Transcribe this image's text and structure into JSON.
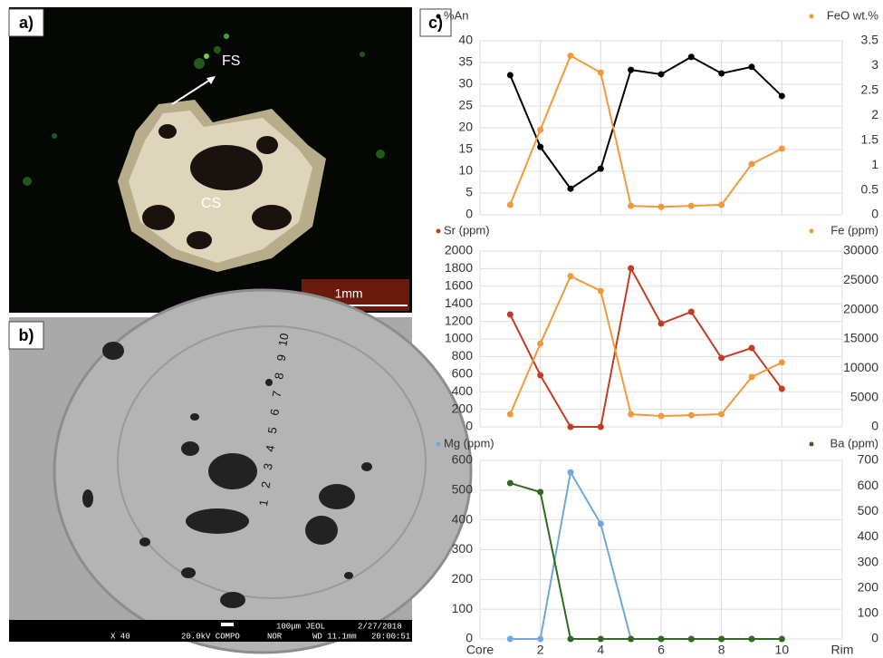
{
  "panels": {
    "a": {
      "label": "a)",
      "texts": [
        "FS",
        "CS"
      ],
      "scale": "1mm"
    },
    "b": {
      "label": "b)",
      "points": [
        "1",
        "2",
        "3",
        "4",
        "5",
        "6",
        "7",
        "8",
        "9",
        "10"
      ],
      "footer": [
        "X 40",
        "20.0kV COMPO",
        "NOR",
        "100µm JEOL",
        "WD 11.1mm",
        "2/27/2018",
        "20:00:51"
      ]
    },
    "c": {
      "label": "c)"
    }
  },
  "chart_data": [
    {
      "type": "line",
      "x": [
        1,
        2,
        3,
        4,
        5,
        6,
        7,
        8,
        9,
        10
      ],
      "xlim": [
        0,
        12
      ],
      "grid": true,
      "ylim": [
        0,
        40
      ],
      "yticks": [
        0,
        5,
        10,
        15,
        20,
        25,
        30,
        35,
        40
      ],
      "y2lim": [
        0,
        3.5
      ],
      "y2ticks": [
        0,
        0.5,
        1,
        1.5,
        2,
        2.5,
        3,
        3.5
      ],
      "series": [
        {
          "name": "%An",
          "color": "#000000",
          "values": [
            32.1,
            15.6,
            6.0,
            10.6,
            33.3,
            32.3,
            36.3,
            32.5,
            34.0,
            27.3
          ]
        },
        {
          "name": "FeO wt.%",
          "color": "#f0993a",
          "axis": "y2",
          "values": [
            0.2,
            1.71,
            3.2,
            2.86,
            0.18,
            0.16,
            0.18,
            0.2,
            1.02,
            1.33
          ]
        }
      ]
    },
    {
      "type": "line",
      "x": [
        1,
        2,
        3,
        4,
        5,
        6,
        7,
        8,
        9,
        10
      ],
      "xlim": [
        0,
        12
      ],
      "grid": true,
      "ylim": [
        0,
        2000
      ],
      "yticks": [
        0,
        200,
        400,
        600,
        800,
        1000,
        1200,
        1400,
        1600,
        1800,
        2000
      ],
      "y2lim": [
        0,
        30000
      ],
      "y2ticks": [
        0,
        5000,
        10000,
        15000,
        20000,
        25000,
        30000
      ],
      "series": [
        {
          "name": "Sr (ppm)",
          "color": "#c23b22",
          "values": [
            1278,
            588,
            0,
            0,
            1804,
            1175,
            1309,
            784,
            897,
            433
          ]
        },
        {
          "name": "Fe (ppm)",
          "color": "#f0993a",
          "axis": "y2",
          "values": [
            2160,
            14200,
            25700,
            23200,
            2160,
            1850,
            2000,
            2160,
            8500,
            11000
          ]
        }
      ]
    },
    {
      "type": "line",
      "x": [
        1,
        2,
        3,
        4,
        5,
        6,
        7,
        8,
        9,
        10
      ],
      "xlim": [
        0,
        12
      ],
      "grid": true,
      "xticks": [
        {
          "value": 0,
          "label": "Core"
        },
        2,
        4,
        6,
        8,
        10,
        {
          "value": 12,
          "label": "Rim"
        }
      ],
      "ylim": [
        0,
        600
      ],
      "yticks": [
        0,
        100,
        200,
        300,
        400,
        500,
        600
      ],
      "y2lim": [
        0,
        700
      ],
      "y2ticks": [
        0,
        100,
        200,
        300,
        400,
        500,
        600,
        700
      ],
      "series": [
        {
          "name": "Mg (ppm)",
          "color": "#6fa8dc",
          "values": [
            0,
            0,
            560,
            387,
            0,
            0,
            0,
            0,
            0,
            0
          ]
        },
        {
          "name": "Ba (ppm)",
          "color": "#2e6b1f",
          "axis": "y2",
          "values": [
            611,
            576,
            0,
            0,
            0,
            0,
            0,
            0,
            0,
            0
          ]
        }
      ]
    }
  ]
}
